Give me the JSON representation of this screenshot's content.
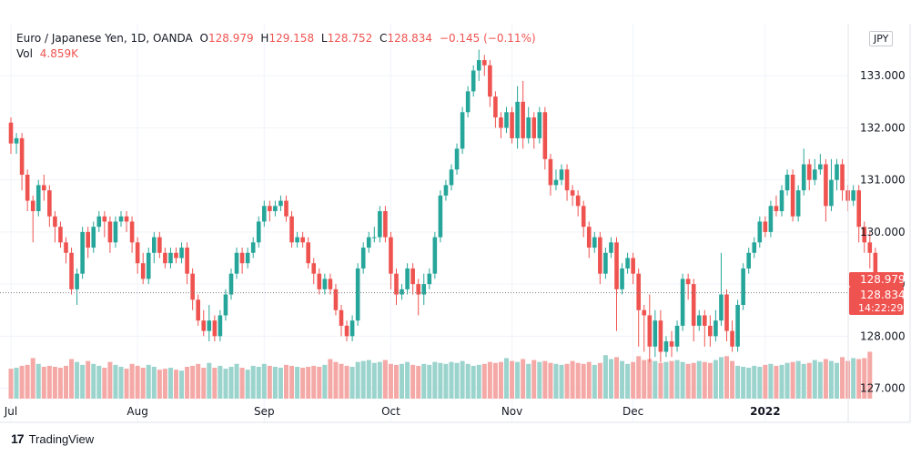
{
  "legend": {
    "symbol": "Euro / Japanese Yen, 1D, OANDA",
    "open_label": "O",
    "open": "128.979",
    "high_label": "H",
    "high": "129.158",
    "low_label": "L",
    "low": "128.752",
    "close_label": "C",
    "close": "128.834",
    "change": "−0.145 (−0.11%)",
    "vol_label": "Vol",
    "vol": "4.859K"
  },
  "currency_badge": "JPY",
  "price_tags": {
    "open_tag": "128.979",
    "close_tag": "128.834",
    "countdown": "14:22:29"
  },
  "footer": {
    "logo": "17",
    "brand": "TradingView"
  },
  "colors": {
    "up": "#26a69a",
    "down": "#ef5350",
    "up_vol": "#9bd3cd",
    "down_vol": "#f4a9a7",
    "grid": "#f0f3fa"
  },
  "chart_data": {
    "type": "candlestick",
    "ylim": [
      126.8,
      134.0
    ],
    "y_ticks": [
      "127.000",
      "128.000",
      "129.000",
      "130.000",
      "131.000",
      "132.000",
      "133.000"
    ],
    "x_ticks": [
      {
        "label": "Jul",
        "index": 0
      },
      {
        "label": "Aug",
        "index": 23
      },
      {
        "label": "Sep",
        "index": 46
      },
      {
        "label": "Oct",
        "index": 69
      },
      {
        "label": "Nov",
        "index": 91
      },
      {
        "label": "Dec",
        "index": 113
      },
      {
        "label": "2022",
        "index": 137
      }
    ],
    "candles": [
      [
        132.1,
        131.7,
        132.2,
        131.5
      ],
      [
        131.7,
        131.8,
        131.9,
        131.5
      ],
      [
        131.8,
        131.1,
        131.9,
        130.8
      ],
      [
        131.1,
        130.6,
        131.2,
        130.4
      ],
      [
        130.6,
        130.4,
        130.7,
        129.8
      ],
      [
        130.4,
        130.9,
        131.0,
        130.3
      ],
      [
        130.9,
        130.8,
        131.1,
        130.6
      ],
      [
        130.8,
        130.3,
        130.9,
        130.1
      ],
      [
        130.3,
        130.1,
        130.4,
        129.8
      ],
      [
        130.1,
        129.8,
        130.2,
        129.7
      ],
      [
        129.8,
        129.6,
        129.9,
        129.4
      ],
      [
        129.6,
        128.9,
        129.7,
        128.8
      ],
      [
        128.9,
        129.2,
        129.3,
        128.6
      ],
      [
        129.2,
        130.0,
        130.1,
        129.1
      ],
      [
        130.0,
        129.7,
        130.1,
        129.5
      ],
      [
        129.7,
        130.1,
        130.2,
        129.6
      ],
      [
        130.1,
        130.3,
        130.4,
        130.0
      ],
      [
        130.3,
        130.2,
        130.4,
        129.9
      ],
      [
        130.2,
        129.8,
        130.3,
        129.6
      ],
      [
        129.8,
        130.2,
        130.3,
        129.7
      ],
      [
        130.2,
        130.3,
        130.4,
        130.1
      ],
      [
        130.3,
        130.2,
        130.4,
        130.0
      ],
      [
        130.2,
        129.8,
        130.3,
        129.6
      ],
      [
        129.8,
        129.4,
        129.9,
        129.2
      ],
      [
        129.4,
        129.1,
        129.6,
        129.0
      ],
      [
        129.1,
        129.6,
        129.7,
        129.0
      ],
      [
        129.6,
        129.9,
        130.0,
        129.4
      ],
      [
        129.9,
        129.6,
        130.0,
        129.5
      ],
      [
        129.6,
        129.4,
        129.7,
        129.3
      ],
      [
        129.4,
        129.6,
        129.7,
        129.3
      ],
      [
        129.6,
        129.5,
        129.7,
        129.4
      ],
      [
        129.5,
        129.7,
        129.8,
        129.4
      ],
      [
        129.7,
        129.2,
        129.8,
        129.0
      ],
      [
        129.2,
        128.7,
        129.3,
        128.5
      ],
      [
        128.7,
        128.3,
        128.8,
        128.2
      ],
      [
        128.3,
        128.1,
        128.5,
        128.0
      ],
      [
        128.1,
        128.3,
        128.6,
        127.9
      ],
      [
        128.3,
        128.0,
        128.4,
        127.9
      ],
      [
        128.0,
        128.4,
        128.5,
        127.9
      ],
      [
        128.4,
        128.8,
        128.9,
        128.3
      ],
      [
        128.8,
        129.2,
        129.3,
        128.7
      ],
      [
        129.2,
        129.6,
        129.7,
        129.1
      ],
      [
        129.6,
        129.4,
        129.7,
        129.2
      ],
      [
        129.4,
        129.6,
        129.7,
        129.3
      ],
      [
        129.6,
        129.8,
        129.9,
        129.5
      ],
      [
        129.8,
        130.2,
        130.3,
        129.7
      ],
      [
        130.2,
        130.5,
        130.6,
        130.1
      ],
      [
        130.5,
        130.4,
        130.6,
        130.2
      ],
      [
        130.4,
        130.5,
        130.6,
        130.3
      ],
      [
        130.5,
        130.6,
        130.7,
        130.4
      ],
      [
        130.6,
        130.3,
        130.7,
        130.2
      ],
      [
        130.3,
        129.8,
        130.4,
        129.7
      ],
      [
        129.8,
        129.9,
        130.0,
        129.7
      ],
      [
        129.9,
        129.8,
        130.0,
        129.7
      ],
      [
        129.8,
        129.4,
        129.9,
        129.3
      ],
      [
        129.4,
        129.2,
        129.5,
        129.0
      ],
      [
        129.2,
        128.9,
        129.3,
        128.8
      ],
      [
        128.9,
        129.1,
        129.2,
        128.8
      ],
      [
        129.1,
        128.9,
        129.2,
        128.8
      ],
      [
        128.9,
        128.5,
        129.0,
        128.4
      ],
      [
        128.5,
        128.2,
        128.6,
        128.0
      ],
      [
        128.2,
        128.0,
        128.3,
        127.9
      ],
      [
        128.0,
        128.3,
        128.4,
        127.9
      ],
      [
        128.3,
        129.3,
        129.4,
        128.2
      ],
      [
        129.3,
        129.7,
        129.8,
        129.2
      ],
      [
        129.7,
        129.9,
        130.0,
        129.6
      ],
      [
        129.9,
        129.9,
        130.1,
        129.8
      ],
      [
        129.9,
        130.4,
        130.5,
        129.8
      ],
      [
        130.4,
        129.9,
        130.5,
        129.8
      ],
      [
        129.9,
        129.2,
        130.0,
        128.9
      ],
      [
        129.2,
        128.8,
        129.3,
        128.6
      ],
      [
        128.8,
        128.9,
        129.0,
        128.7
      ],
      [
        128.9,
        129.3,
        129.4,
        128.8
      ],
      [
        129.3,
        129.0,
        129.4,
        128.8
      ],
      [
        129.0,
        128.8,
        129.1,
        128.4
      ],
      [
        128.8,
        129.0,
        129.2,
        128.6
      ],
      [
        129.0,
        129.2,
        129.3,
        128.9
      ],
      [
        129.2,
        129.9,
        130.0,
        129.1
      ],
      [
        129.9,
        130.7,
        130.8,
        129.8
      ],
      [
        130.7,
        130.9,
        131.0,
        130.6
      ],
      [
        130.9,
        131.2,
        131.3,
        130.8
      ],
      [
        131.2,
        131.6,
        131.7,
        131.1
      ],
      [
        131.6,
        132.3,
        132.4,
        131.5
      ],
      [
        132.3,
        132.7,
        132.8,
        132.2
      ],
      [
        132.7,
        133.1,
        133.2,
        132.6
      ],
      [
        133.1,
        133.3,
        133.5,
        132.9
      ],
      [
        133.3,
        133.2,
        133.4,
        133.0
      ],
      [
        133.2,
        132.6,
        133.3,
        132.4
      ],
      [
        132.6,
        132.2,
        132.7,
        132.0
      ],
      [
        132.2,
        132.0,
        132.3,
        131.8
      ],
      [
        132.0,
        132.3,
        132.4,
        131.9
      ],
      [
        132.3,
        131.8,
        132.4,
        131.7
      ],
      [
        131.8,
        132.5,
        132.8,
        131.6
      ],
      [
        132.5,
        131.8,
        132.9,
        131.6
      ],
      [
        131.8,
        132.2,
        132.4,
        131.7
      ],
      [
        132.2,
        131.8,
        132.3,
        131.6
      ],
      [
        131.8,
        132.3,
        132.4,
        131.7
      ],
      [
        132.3,
        131.4,
        132.4,
        131.2
      ],
      [
        131.4,
        130.9,
        131.5,
        130.7
      ],
      [
        130.9,
        131.0,
        131.2,
        130.8
      ],
      [
        131.0,
        131.2,
        131.3,
        130.9
      ],
      [
        131.2,
        130.8,
        131.3,
        130.6
      ],
      [
        130.8,
        130.7,
        130.9,
        130.5
      ],
      [
        130.7,
        130.5,
        130.8,
        130.3
      ],
      [
        130.5,
        130.1,
        130.6,
        129.9
      ],
      [
        130.1,
        129.7,
        130.2,
        129.5
      ],
      [
        129.7,
        129.9,
        130.0,
        129.6
      ],
      [
        129.9,
        129.2,
        130.0,
        129.0
      ],
      [
        129.2,
        129.6,
        129.7,
        129.1
      ],
      [
        129.6,
        129.8,
        129.9,
        129.5
      ],
      [
        129.8,
        128.9,
        129.9,
        128.1
      ],
      [
        128.9,
        129.3,
        129.4,
        128.8
      ],
      [
        129.3,
        129.5,
        129.6,
        129.2
      ],
      [
        129.5,
        129.2,
        129.6,
        129.0
      ],
      [
        129.2,
        128.5,
        129.3,
        127.8
      ],
      [
        128.5,
        128.4,
        128.6,
        127.7
      ],
      [
        128.4,
        127.8,
        128.8,
        127.5
      ],
      [
        127.8,
        128.3,
        128.5,
        127.6
      ],
      [
        128.3,
        127.7,
        128.5,
        127.5
      ],
      [
        127.7,
        127.9,
        128.0,
        127.6
      ],
      [
        127.9,
        127.8,
        128.1,
        127.6
      ],
      [
        127.8,
        128.2,
        128.3,
        127.7
      ],
      [
        128.2,
        129.1,
        129.2,
        128.1
      ],
      [
        129.1,
        129.0,
        129.2,
        128.7
      ],
      [
        129.0,
        128.2,
        129.1,
        127.9
      ],
      [
        128.2,
        128.4,
        128.5,
        128.1
      ],
      [
        128.4,
        128.2,
        128.5,
        127.8
      ],
      [
        128.2,
        128.0,
        128.4,
        127.8
      ],
      [
        128.0,
        128.3,
        128.5,
        127.9
      ],
      [
        128.3,
        128.8,
        129.6,
        128.2
      ],
      [
        128.8,
        128.1,
        128.9,
        127.9
      ],
      [
        128.1,
        127.8,
        128.3,
        127.7
      ],
      [
        127.8,
        128.6,
        128.7,
        127.7
      ],
      [
        128.6,
        129.3,
        129.4,
        128.5
      ],
      [
        129.3,
        129.6,
        129.7,
        129.2
      ],
      [
        129.6,
        129.8,
        129.9,
        129.5
      ],
      [
        129.8,
        130.2,
        130.3,
        129.7
      ],
      [
        130.2,
        130.0,
        130.3,
        129.9
      ],
      [
        130.0,
        130.5,
        130.6,
        129.9
      ],
      [
        130.5,
        130.4,
        130.7,
        130.3
      ],
      [
        130.4,
        130.8,
        130.9,
        130.3
      ],
      [
        130.8,
        131.1,
        131.2,
        130.7
      ],
      [
        131.1,
        130.3,
        131.2,
        130.2
      ],
      [
        130.3,
        130.8,
        130.9,
        130.2
      ],
      [
        130.8,
        131.3,
        131.6,
        130.7
      ],
      [
        131.3,
        131.0,
        131.4,
        130.8
      ],
      [
        131.0,
        131.2,
        131.4,
        130.9
      ],
      [
        131.2,
        131.3,
        131.5,
        131.1
      ],
      [
        131.3,
        130.5,
        131.4,
        130.2
      ],
      [
        130.5,
        131.0,
        131.4,
        130.4
      ],
      [
        131.0,
        131.3,
        131.4,
        130.8
      ],
      [
        131.3,
        130.8,
        131.4,
        130.6
      ],
      [
        130.8,
        130.6,
        130.9,
        130.4
      ],
      [
        130.6,
        130.8,
        130.9,
        130.5
      ],
      [
        130.8,
        130.1,
        130.9,
        129.8
      ],
      [
        130.1,
        129.8,
        130.2,
        129.6
      ],
      [
        129.8,
        129.6,
        130.0,
        129.3
      ],
      [
        129.6,
        129.0,
        129.7,
        128.9
      ],
      [
        129.0,
        128.834,
        129.158,
        128.752
      ]
    ],
    "volume": [
      3.1,
      3.2,
      3.4,
      3.5,
      4.2,
      3.6,
      3.3,
      3.4,
      3.3,
      3.2,
      3.4,
      4.1,
      3.8,
      3.5,
      3.9,
      3.6,
      3.4,
      3.2,
      3.8,
      3.5,
      3.3,
      3.1,
      3.6,
      3.4,
      3.2,
      3.5,
      3.3,
      3.0,
      3.1,
      3.2,
      3.0,
      2.9,
      3.3,
      3.4,
      3.6,
      3.2,
      3.7,
      3.2,
      3.4,
      3.1,
      3.3,
      3.6,
      3.2,
      3.0,
      3.4,
      3.3,
      3.6,
      3.4,
      3.3,
      3.2,
      3.5,
      3.4,
      3.3,
      3.2,
      3.3,
      3.4,
      3.3,
      3.5,
      4.1,
      3.8,
      3.6,
      3.4,
      3.3,
      3.8,
      3.9,
      4.0,
      3.7,
      3.8,
      4.0,
      3.6,
      3.5,
      3.6,
      3.8,
      3.5,
      3.4,
      3.6,
      3.5,
      3.8,
      3.7,
      3.6,
      3.8,
      3.7,
      3.9,
      3.6,
      3.4,
      3.5,
      3.6,
      3.8,
      3.7,
      3.8,
      4.2,
      3.9,
      3.8,
      4.1,
      3.6,
      4.0,
      3.8,
      3.9,
      3.7,
      3.6,
      3.5,
      3.6,
      3.9,
      3.7,
      3.6,
      3.8,
      3.5,
      3.7,
      4.5,
      4.1,
      4.3,
      3.9,
      3.6,
      3.8,
      4.4,
      4.0,
      4.1,
      3.9,
      3.7,
      3.8,
      3.9,
      4.0,
      3.8,
      3.6,
      3.7,
      3.9,
      3.8,
      3.7,
      4.0,
      4.3,
      4.4,
      3.9,
      3.4,
      3.3,
      3.2,
      3.4,
      3.3,
      3.5,
      3.6,
      3.4,
      3.5,
      3.7,
      3.8,
      3.9,
      3.6,
      3.7,
      4.0,
      3.8,
      4.1,
      3.9,
      3.7,
      4.3,
      3.9,
      4.2,
      4.1,
      4.2,
      4.859
    ]
  }
}
